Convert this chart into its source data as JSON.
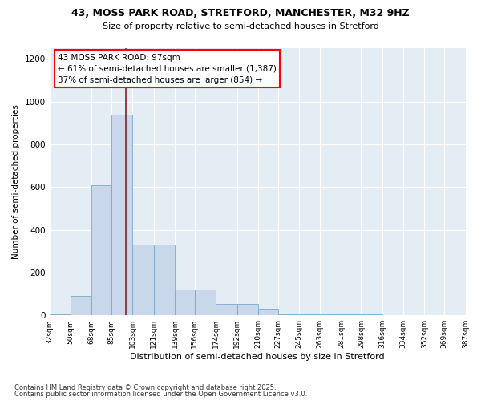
{
  "title_line1": "43, MOSS PARK ROAD, STRETFORD, MANCHESTER, M32 9HZ",
  "title_line2": "Size of property relative to semi-detached houses in Stretford",
  "xlabel": "Distribution of semi-detached houses by size in Stretford",
  "ylabel": "Number of semi-detached properties",
  "footnote1": "Contains HM Land Registry data © Crown copyright and database right 2025.",
  "footnote2": "Contains public sector information licensed under the Open Government Licence v3.0.",
  "property_label": "43 MOSS PARK ROAD: 97sqm",
  "smaller_text": "← 61% of semi-detached houses are smaller (1,387)",
  "larger_text": "37% of semi-detached houses are larger (854) →",
  "property_size": 97,
  "bin_edges": [
    32,
    50,
    68,
    85,
    103,
    121,
    139,
    156,
    174,
    192,
    210,
    227,
    245,
    263,
    281,
    298,
    316,
    334,
    352,
    369,
    387
  ],
  "bar_heights": [
    5,
    90,
    610,
    940,
    330,
    330,
    120,
    120,
    55,
    55,
    30,
    5,
    5,
    5,
    5,
    5,
    0,
    0,
    0,
    0
  ],
  "bar_color": "#c8d8ea",
  "bar_edge_color": "#7baac8",
  "marker_color": "#8b1a1a",
  "bg_color": "#e4ecf4",
  "ylim": [
    0,
    1250
  ],
  "yticks": [
    0,
    200,
    400,
    600,
    800,
    1000,
    1200
  ]
}
